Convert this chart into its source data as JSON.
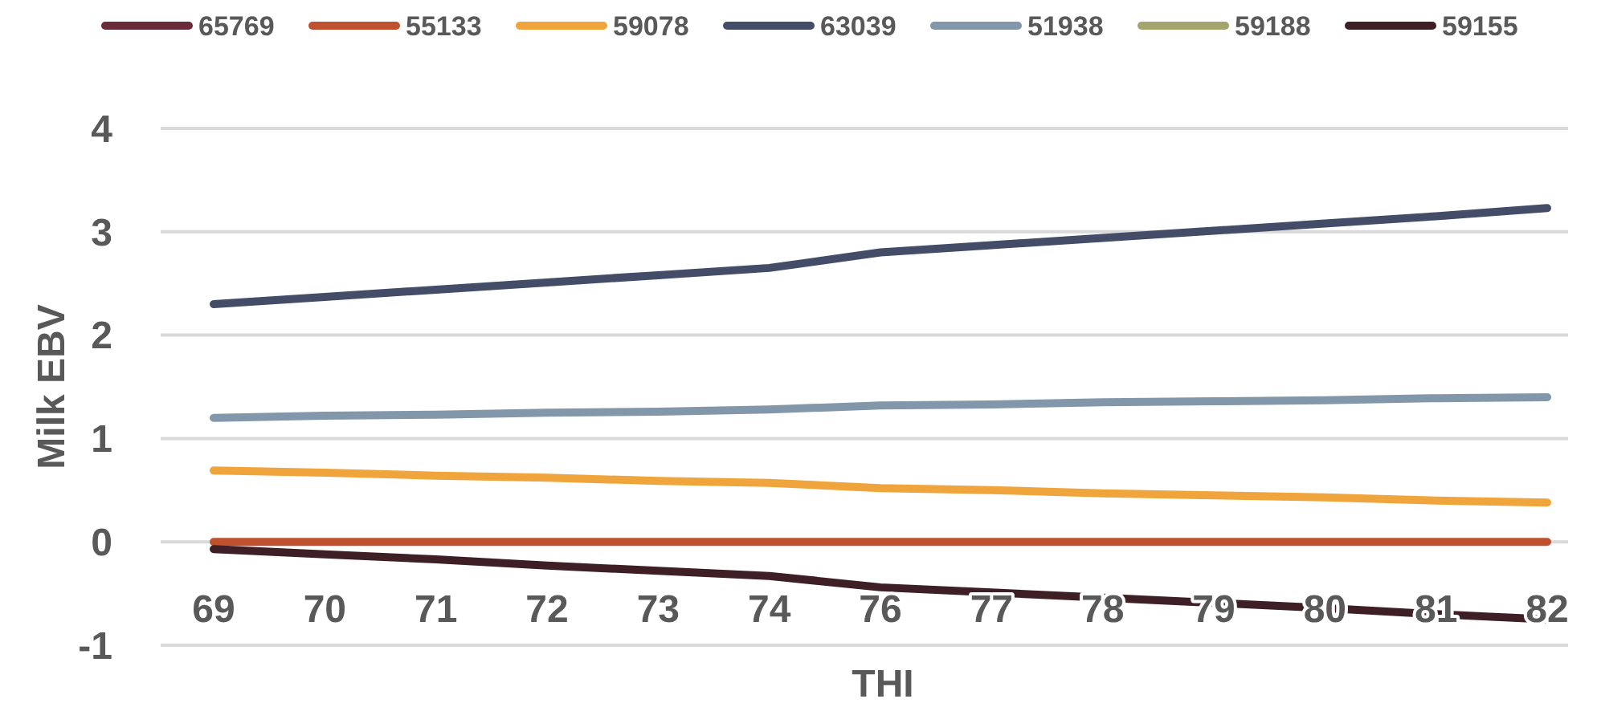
{
  "chart_data": {
    "type": "line",
    "xlabel": "THI",
    "ylabel": "Milk EBV",
    "categories": [
      "69",
      "70",
      "71",
      "72",
      "73",
      "74",
      "76",
      "77",
      "78",
      "79",
      "80",
      "81",
      "82"
    ],
    "series": [
      {
        "name": "65769",
        "color": "#6b2c3a",
        "values": [
          null,
          null,
          null,
          null,
          null,
          null,
          null,
          null,
          null,
          null,
          null,
          null,
          null
        ]
      },
      {
        "name": "55133",
        "color": "#c0512f",
        "values": [
          0,
          0,
          0,
          0,
          0,
          0,
          0,
          0,
          0,
          0,
          0,
          0,
          0
        ]
      },
      {
        "name": "59078",
        "color": "#f0a43c",
        "values": [
          0.69,
          0.67,
          0.64,
          0.62,
          0.59,
          0.57,
          0.52,
          0.5,
          0.47,
          0.45,
          0.43,
          0.4,
          0.38
        ]
      },
      {
        "name": "63039",
        "color": "#434d68",
        "values": [
          2.3,
          2.37,
          2.44,
          2.51,
          2.58,
          2.65,
          2.8,
          2.87,
          2.94,
          3.01,
          3.08,
          3.15,
          3.23
        ]
      },
      {
        "name": "51938",
        "color": "#8298aa",
        "values": [
          1.2,
          1.22,
          1.23,
          1.25,
          1.26,
          1.28,
          1.32,
          1.33,
          1.35,
          1.36,
          1.37,
          1.39,
          1.4
        ]
      },
      {
        "name": "59188",
        "color": "#a3a56c",
        "values": [
          null,
          null,
          null,
          null,
          null,
          null,
          null,
          null,
          null,
          null,
          null,
          null,
          null
        ]
      },
      {
        "name": "59155",
        "color": "#3f1f26",
        "values": [
          -0.07,
          -0.12,
          -0.17,
          -0.23,
          -0.28,
          -0.33,
          -0.44,
          -0.49,
          -0.54,
          -0.59,
          -0.64,
          -0.7,
          -0.75
        ]
      }
    ],
    "ylim": [
      -1,
      4
    ],
    "yticks": [
      -1,
      0,
      1,
      2,
      3,
      4
    ],
    "grid": "y",
    "legend": "top",
    "marker": "none",
    "line_style": "solid"
  }
}
